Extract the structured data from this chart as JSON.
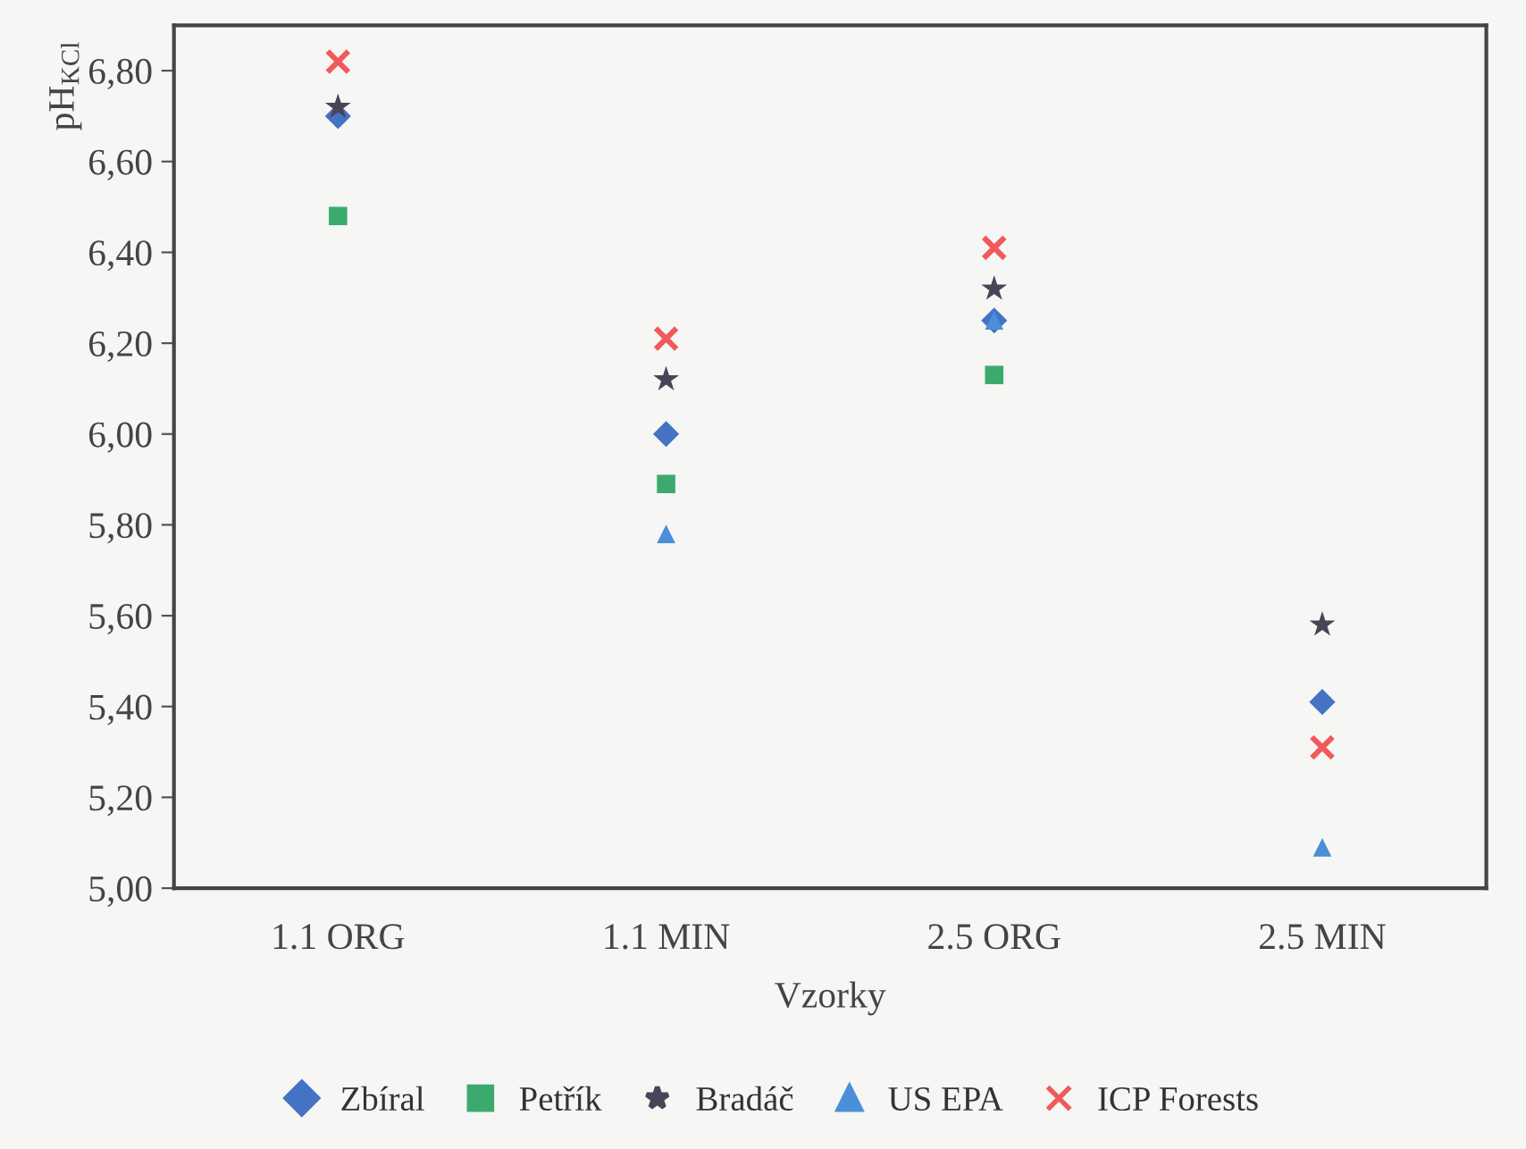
{
  "chart_data": {
    "type": "scatter",
    "categories": [
      "1.1 ORG",
      "1.1 MIN",
      "2.5 ORG",
      "2.5 MIN"
    ],
    "xlabel": "Vzorky",
    "ylabel": "pH$_{KCl}$",
    "ylim": [
      5.0,
      6.9
    ],
    "yticks": [
      {
        "value": 5.0,
        "label": "5,00"
      },
      {
        "value": 5.2,
        "label": "5,20"
      },
      {
        "value": 5.4,
        "label": "5,40"
      },
      {
        "value": 5.6,
        "label": "5,60"
      },
      {
        "value": 5.8,
        "label": "5,80"
      },
      {
        "value": 6.0,
        "label": "6,00"
      },
      {
        "value": 6.2,
        "label": "6,20"
      },
      {
        "value": 6.4,
        "label": "6,40"
      },
      {
        "value": 6.6,
        "label": "6,60"
      },
      {
        "value": 6.8,
        "label": "6,80"
      }
    ],
    "grid": false,
    "legend": "bottom",
    "series": [
      {
        "name": "Zbíral",
        "color": "#4472c4",
        "marker": "diamond",
        "values": [
          6.7,
          6.0,
          6.25,
          5.41
        ]
      },
      {
        "name": "Petřík",
        "color": "#3caa6e",
        "marker": "square",
        "values": [
          6.48,
          5.89,
          6.13,
          null
        ]
      },
      {
        "name": "Bradáč",
        "color": "#4a4458",
        "marker": "star",
        "values": [
          6.72,
          6.12,
          6.32,
          5.58
        ]
      },
      {
        "name": "US EPA",
        "color": "#4a8fd8",
        "marker": "triangle",
        "values": [
          null,
          5.78,
          6.25,
          5.09
        ]
      },
      {
        "name": "ICP Forests",
        "color": "#f05a5a",
        "marker": "cross",
        "values": [
          6.82,
          6.21,
          6.41,
          5.31
        ]
      }
    ]
  }
}
